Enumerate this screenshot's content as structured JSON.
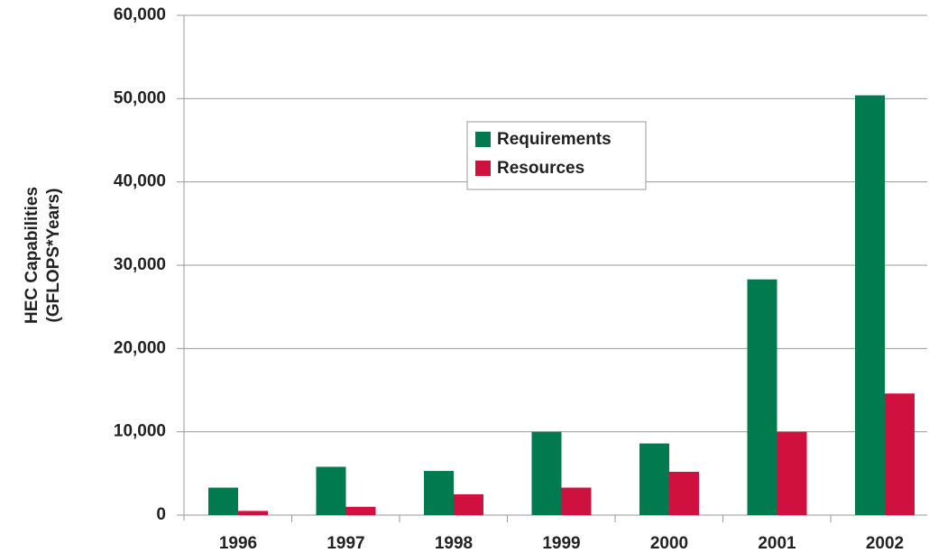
{
  "chart_data": {
    "type": "bar",
    "y_label": [
      "HEC Capabilities",
      "(GFLOPS*Years)"
    ],
    "categories": [
      "1996",
      "1997",
      "1998",
      "1999",
      "2000",
      "2001",
      "2002"
    ],
    "series": [
      {
        "name": "Requirements",
        "color": "#007a4e",
        "values": [
          3300,
          5800,
          5300,
          10000,
          8600,
          28300,
          50400
        ]
      },
      {
        "name": "Resources",
        "color": "#d0103f",
        "values": [
          500,
          1000,
          2500,
          3300,
          5200,
          10000,
          14600
        ]
      }
    ],
    "ylim": [
      0,
      60000
    ],
    "yticks": [
      0,
      {
        "value": 10000,
        "label": "10,000"
      },
      {
        "value": 20000,
        "label": "20,000"
      },
      {
        "value": 30000,
        "label": "30,000"
      },
      {
        "value": 40000,
        "label": "40,000"
      },
      {
        "value": 50000,
        "label": "50,000"
      },
      {
        "value": 60000,
        "label": "60,000"
      }
    ],
    "grid": true
  }
}
